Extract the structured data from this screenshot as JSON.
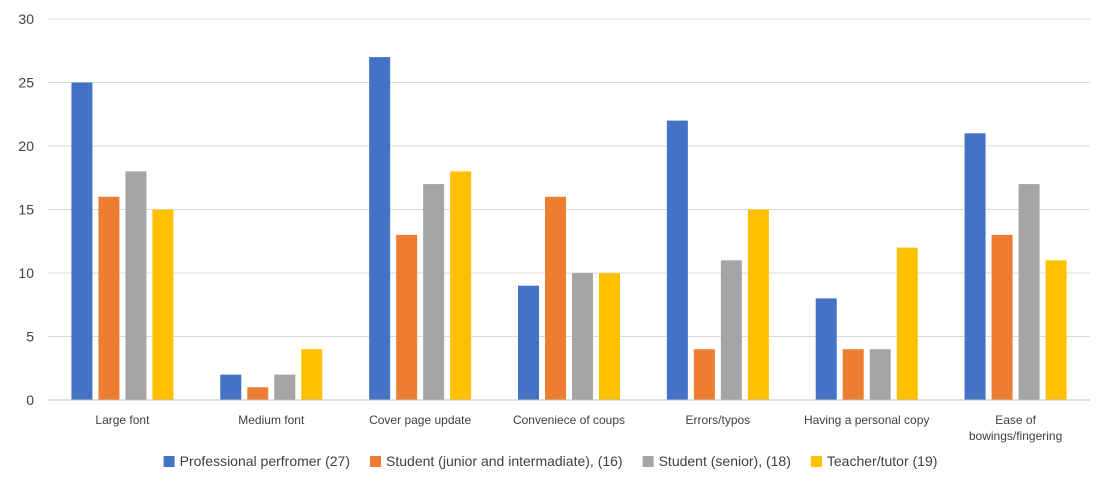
{
  "chart_data": {
    "type": "bar",
    "title": "",
    "xlabel": "",
    "ylabel": "",
    "ylim": [
      0,
      30
    ],
    "yticks": [
      "0",
      "5",
      "10",
      "15",
      "20",
      "25",
      "30"
    ],
    "grid": true,
    "legend_position": "bottom",
    "categories": [
      [
        "Large font"
      ],
      [
        "Medium font"
      ],
      [
        "Cover page update"
      ],
      [
        "Conveniece of coups"
      ],
      [
        "Errors/typos"
      ],
      [
        "Having a personal copy"
      ],
      [
        "Ease of",
        "bowings/fingering"
      ]
    ],
    "series": [
      {
        "name": "Professional perfromer (27)",
        "color": "#4472C4",
        "values": [
          25,
          2,
          27,
          9,
          22,
          8,
          21
        ]
      },
      {
        "name": "Student (junior and intermadiate), (16)",
        "color": "#ED7D31",
        "values": [
          16,
          1,
          13,
          16,
          4,
          4,
          13
        ]
      },
      {
        "name": "Student (senior), (18)",
        "color": "#A5A5A5",
        "values": [
          18,
          2,
          17,
          10,
          11,
          4,
          17
        ]
      },
      {
        "name": "Teacher/tutor (19)",
        "color": "#FFC000",
        "values": [
          15,
          4,
          18,
          10,
          15,
          12,
          11
        ]
      }
    ]
  }
}
